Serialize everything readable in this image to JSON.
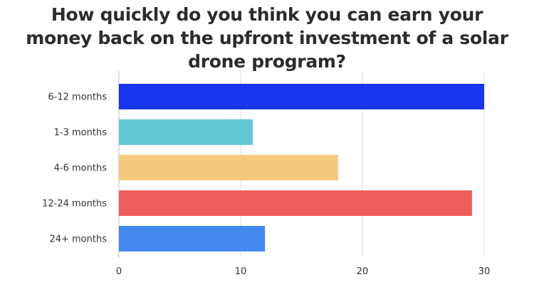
{
  "chart_data": {
    "type": "bar",
    "orientation": "horizontal",
    "title": "How quickly do you think you can earn your money back on the upfront investment of a solar drone program?",
    "title_lines": [
      "How quickly do you think you can earn your",
      "money back on the upfront investment of a solar",
      "drone program?"
    ],
    "categories": [
      "6-12 months",
      "1-3 months",
      "4-6 months",
      "12-24 months",
      "24+ months"
    ],
    "values": [
      30,
      11,
      18,
      29,
      12
    ],
    "colors": [
      "#1a35ee",
      "#62c8d3",
      "#f3c97b",
      "#ec5d5b",
      "#4389ef"
    ],
    "xlim": [
      0,
      30
    ],
    "xticks": [
      0,
      10,
      20,
      30
    ],
    "xlabel": "",
    "ylabel": "",
    "grid": true
  }
}
